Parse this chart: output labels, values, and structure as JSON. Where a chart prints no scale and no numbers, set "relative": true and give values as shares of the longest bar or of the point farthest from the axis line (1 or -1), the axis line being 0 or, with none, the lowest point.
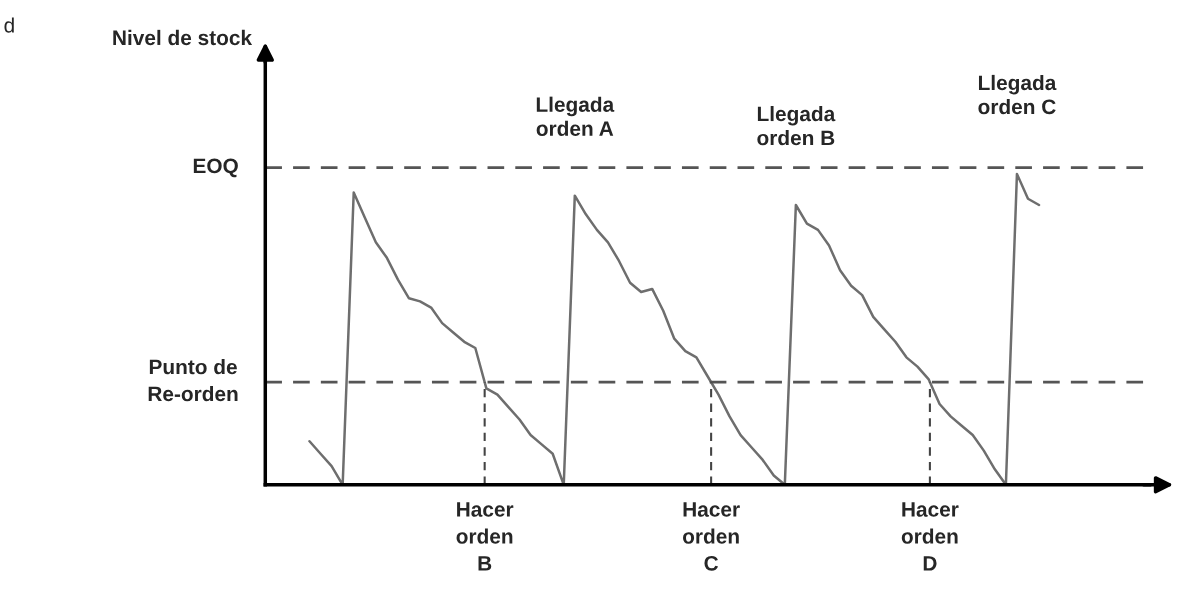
{
  "chart_data": {
    "type": "line",
    "relative": true,
    "categories": [
      null,
      null,
      null,
      null,
      null,
      null,
      null,
      null,
      null,
      null,
      null,
      null,
      null,
      null,
      null,
      null,
      null,
      null,
      null,
      null,
      null,
      null,
      null,
      null,
      null,
      null,
      null,
      null,
      null,
      null,
      null,
      null,
      null,
      null,
      null,
      null,
      null,
      null,
      null,
      null,
      null,
      null,
      null,
      null,
      null,
      null,
      null,
      null,
      null,
      null,
      null,
      null,
      null,
      null,
      null,
      null,
      null,
      null,
      null,
      null,
      null,
      null,
      null,
      null,
      null,
      null,
      null
    ],
    "series": [
      {
        "color": "#6e6e6e",
        "values": [
          0.14,
          0.1,
          0.06,
          0,
          0.94,
          0.86,
          0.78,
          0.73,
          0.66,
          0.6,
          0.59,
          0.57,
          0.52,
          0.49,
          0.46,
          0.44,
          0.31,
          0.29,
          0.25,
          0.21,
          0.16,
          0.13,
          0.1,
          0,
          0.93,
          0.87,
          0.82,
          0.78,
          0.72,
          0.65,
          0.62,
          0.63,
          0.56,
          0.47,
          0.43,
          0.41,
          0.35,
          0.29,
          0.22,
          0.16,
          0.12,
          0.08,
          0.03,
          0,
          0.9,
          0.84,
          0.82,
          0.77,
          0.69,
          0.64,
          0.61,
          0.54,
          0.5,
          0.46,
          0.41,
          0.38,
          0.34,
          0.26,
          0.22,
          0.19,
          0.16,
          0.11,
          0.05,
          0,
          1.0,
          0.92,
          0.9
        ]
      }
    ],
    "ref_lines": [
      {
        "axis": "y",
        "value": 1.02,
        "label": "EOQ",
        "color": "#555555",
        "line_style": "dashed"
      },
      {
        "axis": "y",
        "value": 0.33,
        "label": "Punto de\nRe-orden",
        "color": "#555555",
        "line_style": "dashed"
      }
    ],
    "annotations": [
      "d",
      "Nivel de stock",
      {
        "text": "Llegada\norden A",
        "y": 0.93
      },
      {
        "text": "Llegada\norden B",
        "y": 0.9
      },
      {
        "text": "Llegada\norden C",
        "y": 1.0
      },
      {
        "text": "Hacer\norden\nB",
        "y": 0.33
      },
      {
        "text": "Hacer\norden\nC",
        "y": 0.33
      },
      {
        "text": "Hacer\norden\nD",
        "y": 0.33
      }
    ]
  }
}
